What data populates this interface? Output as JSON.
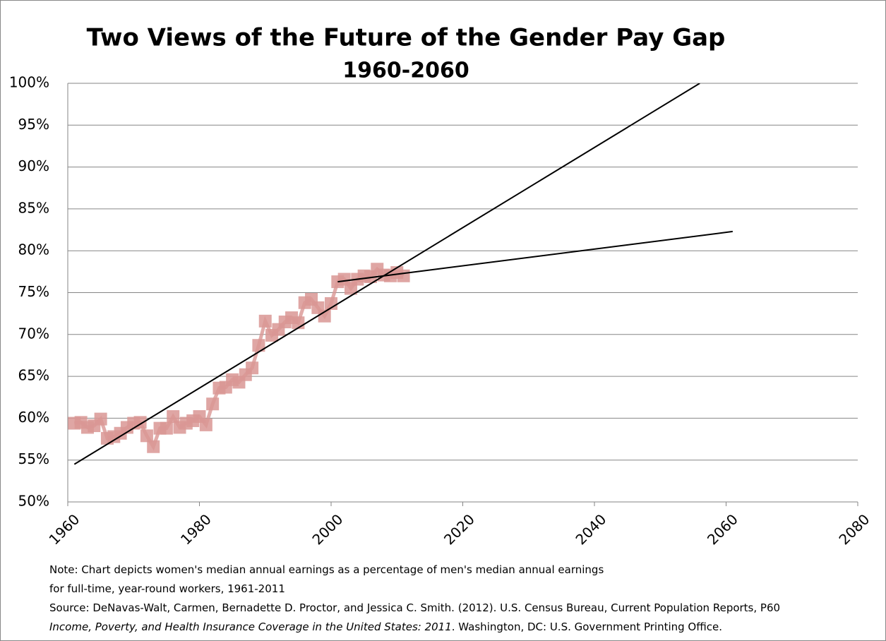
{
  "chart_data": {
    "type": "line",
    "title": "Two Views of the Future of the Gender Pay Gap",
    "subtitle": "1960-2060",
    "series": [
      {
        "color": "#d99694",
        "marker": "square",
        "x": [
          1961,
          1962,
          1963,
          1964,
          1965,
          1966,
          1967,
          1968,
          1969,
          1970,
          1971,
          1972,
          1973,
          1974,
          1975,
          1976,
          1977,
          1978,
          1979,
          1980,
          1981,
          1982,
          1983,
          1984,
          1985,
          1986,
          1987,
          1988,
          1989,
          1990,
          1991,
          1992,
          1993,
          1994,
          1995,
          1996,
          1997,
          1998,
          1999,
          2000,
          2001,
          2002,
          2003,
          2004,
          2005,
          2006,
          2007,
          2008,
          2009,
          2010,
          2011
        ],
        "values": [
          59.4,
          59.5,
          58.9,
          59.1,
          59.9,
          57.6,
          57.8,
          58.2,
          58.9,
          59.4,
          59.5,
          57.9,
          56.6,
          58.8,
          58.8,
          60.2,
          58.9,
          59.4,
          59.7,
          60.2,
          59.2,
          61.7,
          63.6,
          63.7,
          64.6,
          64.3,
          65.2,
          66.0,
          68.7,
          71.6,
          69.9,
          70.6,
          71.5,
          72.0,
          71.4,
          73.8,
          74.2,
          73.2,
          72.2,
          73.7,
          76.3,
          76.6,
          75.5,
          76.6,
          77.0,
          76.9,
          77.8,
          77.1,
          77.0,
          77.4,
          77.0
        ]
      },
      {
        "color": "#000000",
        "x": [
          1961,
          2056
        ],
        "values": [
          54.5,
          100
        ]
      },
      {
        "color": "#000000",
        "x": [
          2001,
          2061
        ],
        "values": [
          76.3,
          82.3
        ]
      }
    ],
    "xlim": [
      1960,
      2080
    ],
    "xticks": [
      1960,
      1980,
      2000,
      2020,
      2040,
      2060,
      2080
    ],
    "ylim": [
      50,
      100
    ],
    "yticks": [
      {
        "value": 50,
        "label": "50%"
      },
      {
        "value": 55,
        "label": "55%"
      },
      {
        "value": 60,
        "label": "60%"
      },
      {
        "value": 65,
        "label": "65%"
      },
      {
        "value": 70,
        "label": "70%"
      },
      {
        "value": 75,
        "label": "75%"
      },
      {
        "value": 80,
        "label": "80%"
      },
      {
        "value": 85,
        "label": "85%"
      },
      {
        "value": 90,
        "label": "90%"
      },
      {
        "value": 95,
        "label": "95%"
      },
      {
        "value": 100,
        "label": "100%"
      }
    ],
    "grid": true,
    "notes": [
      "Note:  Chart depicts women's median annual earnings as a percentage of men's median annual earnings",
      "for full-time, year-round workers, 1961-2011"
    ],
    "source": [
      "Source: DeNavas-Walt, Carmen, Bernadette D. Proctor, and Jessica C. Smith. (2012). U.S. Census Bureau, Current Population Reports, P60",
      "Income, Poverty, and Health Insurance Coverage in the United States: 2011",
      ". Washington, DC: U.S. Government Printing Office."
    ]
  }
}
